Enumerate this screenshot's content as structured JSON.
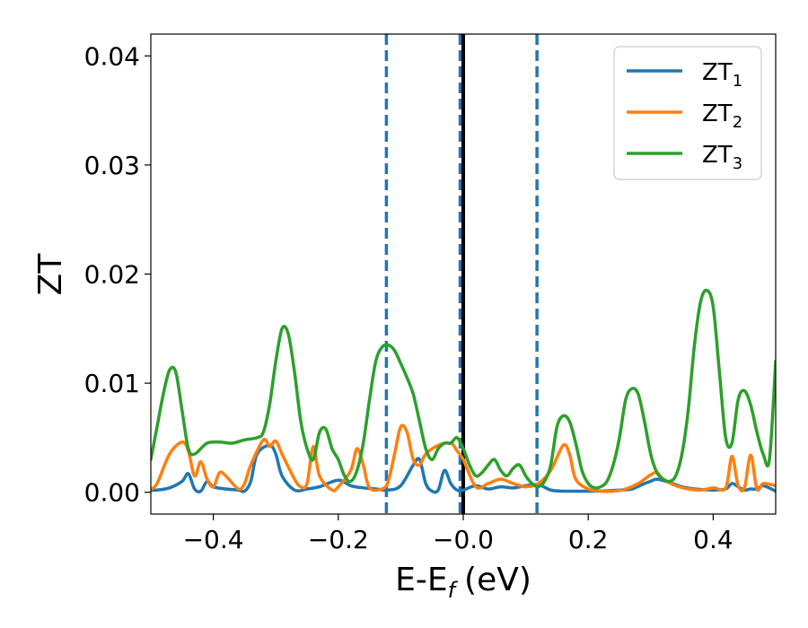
{
  "chart_data": {
    "type": "line",
    "xlabel": "E-E",
    "xlabel_sub": "f",
    "xlabel_unit": "(eV)",
    "ylabel": "ZT",
    "xlim": [
      -0.5,
      0.5
    ],
    "ylim": [
      -0.002,
      0.042
    ],
    "xticks": [
      -0.4,
      -0.2,
      0.0,
      0.2,
      0.4
    ],
    "xtick_labels": [
      "−0.4",
      "−0.2",
      "−0.0",
      "0.2",
      "0.4"
    ],
    "yticks": [
      0.0,
      0.01,
      0.02,
      0.03,
      0.04
    ],
    "ytick_labels": [
      "0.00",
      "0.01",
      "0.02",
      "0.03",
      "0.04"
    ],
    "grid": false,
    "legend_position": "top-right",
    "vertical_lines": [
      {
        "x": -0.123,
        "style": "dashed",
        "color": "#1f77b4"
      },
      {
        "x": -0.005,
        "style": "dashed",
        "color": "#1f77b4"
      },
      {
        "x": 0.118,
        "style": "dashed",
        "color": "#1f77b4"
      },
      {
        "x": 0.0,
        "style": "solid",
        "color": "#000000"
      }
    ],
    "series": [
      {
        "name": "ZT",
        "subscript": "1",
        "color": "#1f77b4",
        "x": [
          -0.5,
          -0.49,
          -0.47,
          -0.45,
          -0.44,
          -0.43,
          -0.42,
          -0.41,
          -0.4,
          -0.38,
          -0.36,
          -0.35,
          -0.34,
          -0.33,
          -0.31,
          -0.3,
          -0.29,
          -0.27,
          -0.25,
          -0.23,
          -0.2,
          -0.18,
          -0.16,
          -0.14,
          -0.12,
          -0.1,
          -0.08,
          -0.07,
          -0.06,
          -0.05,
          -0.04,
          -0.03,
          -0.02,
          -0.01,
          0.0,
          0.02,
          0.04,
          0.06,
          0.08,
          0.1,
          0.12,
          0.14,
          0.16,
          0.18,
          0.2,
          0.22,
          0.25,
          0.27,
          0.29,
          0.3,
          0.31,
          0.33,
          0.35,
          0.37,
          0.4,
          0.42,
          0.43,
          0.44,
          0.45,
          0.46,
          0.47,
          0.48,
          0.5
        ],
        "values": [
          0.0002,
          0.0002,
          0.0004,
          0.001,
          0.0017,
          0.0003,
          0.0001,
          0.001,
          0.0005,
          0.0003,
          0.0002,
          0.0001,
          0.001,
          0.0035,
          0.0043,
          0.0035,
          0.0015,
          0.0002,
          0.0003,
          0.0005,
          0.0011,
          0.0006,
          0.0004,
          0.0003,
          0.0002,
          0.0006,
          0.0025,
          0.003,
          0.0008,
          0.0001,
          0.0002,
          0.002,
          0.0008,
          0.0002,
          0.0002,
          0.0006,
          0.0003,
          0.0005,
          0.0004,
          0.0006,
          0.0007,
          0.0002,
          0.0001,
          0.0001,
          0.0001,
          0.0001,
          0.0002,
          0.0003,
          0.0008,
          0.001,
          0.0012,
          0.0009,
          0.0005,
          0.0003,
          0.0002,
          0.0003,
          0.0008,
          0.0005,
          0.0002,
          0.0003,
          0.0003,
          0.0006,
          0.0001
        ]
      },
      {
        "name": "ZT",
        "subscript": "2",
        "color": "#ff7f0e",
        "x": [
          -0.5,
          -0.49,
          -0.47,
          -0.45,
          -0.44,
          -0.43,
          -0.42,
          -0.41,
          -0.4,
          -0.39,
          -0.38,
          -0.36,
          -0.35,
          -0.34,
          -0.32,
          -0.31,
          -0.3,
          -0.29,
          -0.27,
          -0.26,
          -0.25,
          -0.24,
          -0.23,
          -0.21,
          -0.2,
          -0.18,
          -0.17,
          -0.16,
          -0.15,
          -0.13,
          -0.12,
          -0.11,
          -0.1,
          -0.09,
          -0.08,
          -0.07,
          -0.06,
          -0.04,
          -0.02,
          -0.01,
          0.0,
          0.02,
          0.04,
          0.06,
          0.08,
          0.1,
          0.12,
          0.14,
          0.16,
          0.17,
          0.18,
          0.2,
          0.22,
          0.24,
          0.26,
          0.28,
          0.3,
          0.31,
          0.32,
          0.34,
          0.36,
          0.38,
          0.4,
          0.42,
          0.43,
          0.44,
          0.45,
          0.46,
          0.47,
          0.48,
          0.5
        ],
        "values": [
          0.0003,
          0.0008,
          0.0035,
          0.0046,
          0.0038,
          0.0015,
          0.0028,
          0.0012,
          0.0005,
          0.0018,
          0.0015,
          0.0003,
          0.0008,
          0.0025,
          0.0048,
          0.0042,
          0.0047,
          0.0035,
          0.0012,
          0.0005,
          0.0008,
          0.0042,
          0.0015,
          0.0002,
          0.0005,
          0.002,
          0.004,
          0.0025,
          0.0004,
          0.0003,
          0.001,
          0.0035,
          0.006,
          0.0055,
          0.003,
          0.0025,
          0.0035,
          0.0043,
          0.0045,
          0.0038,
          0.003,
          0.0005,
          0.0008,
          0.0012,
          0.0008,
          0.0005,
          0.0008,
          0.002,
          0.0043,
          0.0035,
          0.0012,
          0.0003,
          0.0001,
          0.0001,
          0.0003,
          0.0008,
          0.0016,
          0.0018,
          0.0012,
          0.0006,
          0.0003,
          0.0002,
          0.0004,
          0.0004,
          0.0033,
          0.0006,
          0.0004,
          0.0034,
          0.0003,
          0.0008,
          0.0006
        ]
      },
      {
        "name": "ZT",
        "subscript": "3",
        "color": "#2ca02c",
        "x": [
          -0.5,
          -0.49,
          -0.48,
          -0.47,
          -0.46,
          -0.45,
          -0.44,
          -0.43,
          -0.41,
          -0.39,
          -0.37,
          -0.35,
          -0.33,
          -0.32,
          -0.31,
          -0.3,
          -0.29,
          -0.28,
          -0.27,
          -0.26,
          -0.25,
          -0.24,
          -0.23,
          -0.22,
          -0.21,
          -0.2,
          -0.19,
          -0.18,
          -0.17,
          -0.16,
          -0.15,
          -0.14,
          -0.13,
          -0.12,
          -0.11,
          -0.1,
          -0.09,
          -0.08,
          -0.07,
          -0.06,
          -0.05,
          -0.04,
          -0.03,
          -0.02,
          -0.01,
          0.0,
          0.01,
          0.02,
          0.03,
          0.04,
          0.05,
          0.06,
          0.07,
          0.08,
          0.09,
          0.1,
          0.11,
          0.12,
          0.13,
          0.14,
          0.15,
          0.16,
          0.17,
          0.18,
          0.19,
          0.2,
          0.21,
          0.22,
          0.23,
          0.24,
          0.25,
          0.26,
          0.27,
          0.28,
          0.29,
          0.3,
          0.31,
          0.32,
          0.33,
          0.34,
          0.35,
          0.36,
          0.37,
          0.38,
          0.39,
          0.4,
          0.41,
          0.42,
          0.43,
          0.44,
          0.45,
          0.46,
          0.47,
          0.48,
          0.49,
          0.5
        ],
        "values": [
          0.003,
          0.006,
          0.009,
          0.0112,
          0.011,
          0.0075,
          0.004,
          0.0035,
          0.0045,
          0.0046,
          0.0045,
          0.0048,
          0.005,
          0.0055,
          0.008,
          0.012,
          0.015,
          0.0145,
          0.011,
          0.0065,
          0.004,
          0.003,
          0.0055,
          0.0058,
          0.004,
          0.003,
          0.0015,
          0.001,
          0.002,
          0.0045,
          0.0085,
          0.012,
          0.0133,
          0.0135,
          0.013,
          0.0118,
          0.0105,
          0.009,
          0.0065,
          0.004,
          0.003,
          0.004,
          0.0045,
          0.0045,
          0.005,
          0.004,
          0.0025,
          0.0015,
          0.0018,
          0.0025,
          0.003,
          0.002,
          0.0015,
          0.0022,
          0.0025,
          0.0015,
          0.0008,
          0.0005,
          0.001,
          0.0025,
          0.006,
          0.007,
          0.0065,
          0.0045,
          0.002,
          0.0008,
          0.0004,
          0.0005,
          0.001,
          0.0025,
          0.005,
          0.0085,
          0.0095,
          0.009,
          0.0065,
          0.0035,
          0.0018,
          0.0012,
          0.001,
          0.0015,
          0.0035,
          0.0075,
          0.0135,
          0.0175,
          0.0185,
          0.017,
          0.011,
          0.005,
          0.0045,
          0.0085,
          0.0093,
          0.008,
          0.0055,
          0.0035,
          0.003,
          0.012
        ]
      }
    ]
  }
}
